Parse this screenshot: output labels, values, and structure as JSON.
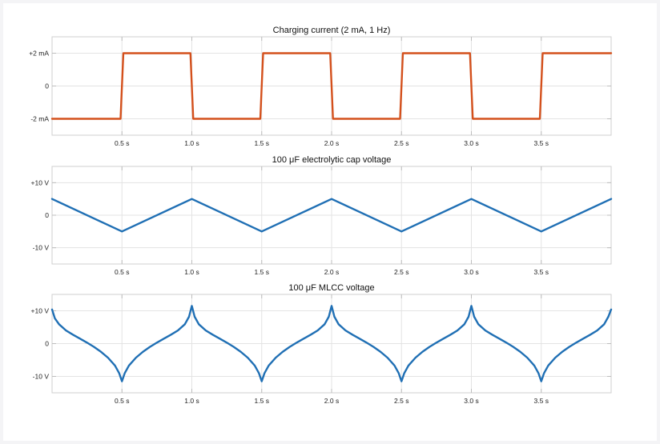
{
  "chart_data": [
    {
      "type": "line",
      "title": "Charging current (2 mA, 1 Hz)",
      "xlim": [
        0,
        4
      ],
      "ylim": [
        -3,
        3
      ],
      "grid": true,
      "x_ticks": [
        0.5,
        1.0,
        1.5,
        2.0,
        2.5,
        3.0,
        3.5
      ],
      "x_tick_labels": [
        "0.5 s",
        "1.0 s",
        "1.5 s",
        "2.0 s",
        "2.5 s",
        "3.0 s",
        "3.5 s"
      ],
      "y_ticks": [
        2,
        0,
        -2
      ],
      "y_tick_labels": [
        "+2 mA",
        "0",
        "-2 mA"
      ],
      "color": "#d4501c",
      "series": [
        {
          "x": [
            0,
            0.49,
            0.51,
            0.99,
            1.01,
            1.49,
            1.51,
            1.99,
            2.01,
            2.49,
            2.51,
            2.99,
            3.01,
            3.49,
            3.51,
            4.0
          ],
          "values": [
            -2,
            -2,
            2,
            2,
            -2,
            -2,
            2,
            2,
            -2,
            -2,
            2,
            2,
            -2,
            -2,
            2,
            2
          ]
        }
      ]
    },
    {
      "type": "line",
      "title": "100 μF electrolytic cap voltage",
      "xlim": [
        0,
        4
      ],
      "ylim": [
        -15,
        15
      ],
      "grid": true,
      "x_ticks": [
        0.5,
        1.0,
        1.5,
        2.0,
        2.5,
        3.0,
        3.5
      ],
      "x_tick_labels": [
        "0.5 s",
        "1.0 s",
        "1.5 s",
        "2.0 s",
        "2.5 s",
        "3.0 s",
        "3.5 s"
      ],
      "y_ticks": [
        10,
        0,
        -10
      ],
      "y_tick_labels": [
        "+10 V",
        "0",
        "-10 V"
      ],
      "color": "#1f6fb4",
      "series": [
        {
          "x": [
            0,
            0.5,
            1.0,
            1.5,
            2.0,
            2.5,
            3.0,
            3.5,
            4.0
          ],
          "values": [
            5,
            -5,
            5,
            -5,
            5,
            -5,
            5,
            -5,
            5
          ]
        }
      ]
    },
    {
      "type": "line",
      "title": "100 μF MLCC voltage",
      "xlim": [
        0,
        4
      ],
      "ylim": [
        -15,
        15
      ],
      "grid": true,
      "x_ticks": [
        0.5,
        1.0,
        1.5,
        2.0,
        2.5,
        3.0,
        3.5
      ],
      "x_tick_labels": [
        "0.5 s",
        "1.0 s",
        "1.5 s",
        "2.0 s",
        "2.5 s",
        "3.0 s",
        "3.5 s"
      ],
      "y_ticks": [
        10,
        0,
        -10
      ],
      "y_tick_labels": [
        "+10 V",
        "0",
        "-10 V"
      ],
      "color": "#1f6fb4",
      "series": [
        {
          "x": [
            0,
            0.02,
            0.05,
            0.1,
            0.15,
            0.2,
            0.25,
            0.3,
            0.35,
            0.4,
            0.45,
            0.48,
            0.5,
            0.52,
            0.55,
            0.6,
            0.65,
            0.7,
            0.75,
            0.8,
            0.85,
            0.9,
            0.95,
            0.98,
            1.0,
            1.02,
            1.05,
            1.1,
            1.15,
            1.2,
            1.25,
            1.3,
            1.35,
            1.4,
            1.45,
            1.48,
            1.5,
            1.52,
            1.55,
            1.6,
            1.65,
            1.7,
            1.75,
            1.8,
            1.85,
            1.9,
            1.95,
            1.98,
            2.0,
            2.02,
            2.05,
            2.1,
            2.15,
            2.2,
            2.25,
            2.3,
            2.35,
            2.4,
            2.45,
            2.48,
            2.5,
            2.52,
            2.55,
            2.6,
            2.65,
            2.7,
            2.75,
            2.8,
            2.85,
            2.9,
            2.95,
            2.98,
            3.0,
            3.02,
            3.05,
            3.1,
            3.15,
            3.2,
            3.25,
            3.3,
            3.35,
            3.4,
            3.45,
            3.48,
            3.5,
            3.52,
            3.55,
            3.6,
            3.65,
            3.7,
            3.75,
            3.8,
            3.85,
            3.9,
            3.95,
            3.98,
            4.0
          ],
          "values": [
            10.4,
            7.7,
            5.9,
            4.0,
            2.7,
            1.5,
            0.3,
            -1.0,
            -2.5,
            -4.3,
            -6.7,
            -9.0,
            -11.5,
            -9.0,
            -6.7,
            -4.3,
            -2.5,
            -1.0,
            0.3,
            1.5,
            2.7,
            4.0,
            5.9,
            8.2,
            11.5,
            8.2,
            5.9,
            4.0,
            2.7,
            1.5,
            0.3,
            -1.0,
            -2.5,
            -4.3,
            -6.7,
            -9.0,
            -11.5,
            -9.0,
            -6.7,
            -4.3,
            -2.5,
            -1.0,
            0.3,
            1.5,
            2.7,
            4.0,
            5.9,
            8.2,
            11.5,
            8.2,
            5.9,
            4.0,
            2.7,
            1.5,
            0.3,
            -1.0,
            -2.5,
            -4.3,
            -6.7,
            -9.0,
            -11.5,
            -9.0,
            -6.7,
            -4.3,
            -2.5,
            -1.0,
            0.3,
            1.5,
            2.7,
            4.0,
            5.9,
            8.2,
            11.5,
            8.2,
            5.9,
            4.0,
            2.7,
            1.5,
            0.3,
            -1.0,
            -2.5,
            -4.3,
            -6.7,
            -9.0,
            -11.5,
            -9.0,
            -6.7,
            -4.3,
            -2.5,
            -1.0,
            0.3,
            1.5,
            2.7,
            4.0,
            5.9,
            8.2,
            10.4
          ]
        }
      ]
    }
  ]
}
